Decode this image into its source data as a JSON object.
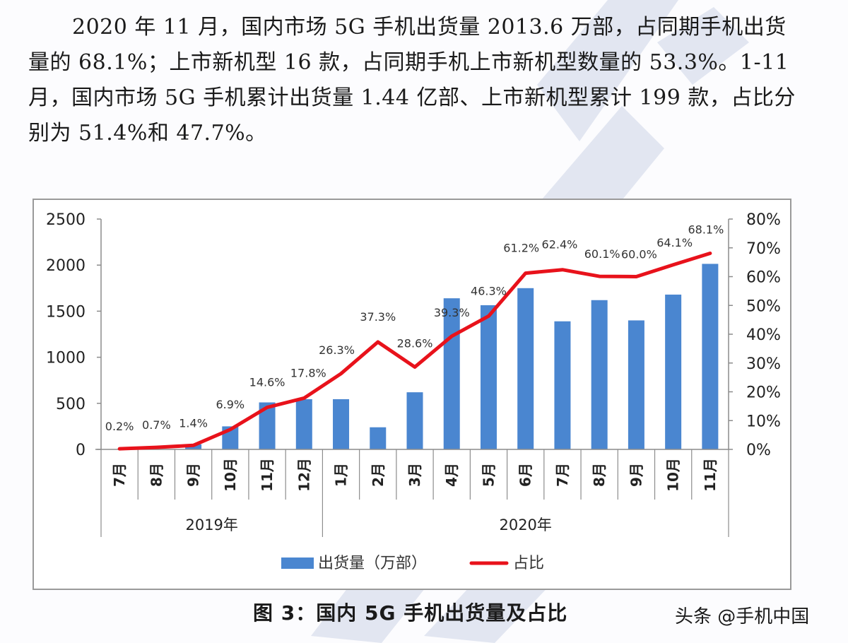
{
  "paragraph": {
    "lines": [
      "2020 年 11 月，国内市场 5G 手机出货量 2013.6 万部，占同期手机出货",
      "量的 68.1%；上市新机型 16 款，占同期手机上市新机型数量的 53.3%。1-11",
      "月，国内市场 5G 手机累计出货量 1.44 亿部、上市新机型累计 199 款，占比分",
      "别为 51.4%和 47.7%。"
    ]
  },
  "caption": "图 3：国内 5G 手机出货量及占比",
  "credit": "头条 @手机中国",
  "colors": {
    "bar": "#4a86d0",
    "line": "#e8121b",
    "axis": "#8c8c8c",
    "text": "#333333"
  },
  "chart_data": {
    "type": "bar+line",
    "title": "国内 5G 手机出货量及占比",
    "categories": [
      "7月",
      "8月",
      "9月",
      "10月",
      "11月",
      "12月",
      "1月",
      "2月",
      "3月",
      "4月",
      "5月",
      "6月",
      "7月",
      "8月",
      "9月",
      "10月",
      "11月"
    ],
    "groups": [
      {
        "label": "2019年",
        "start": 0,
        "end": 5
      },
      {
        "label": "2020年",
        "start": 6,
        "end": 16
      }
    ],
    "series": [
      {
        "name": "出货量（万部）",
        "type": "bar",
        "axis": "left",
        "values": [
          1,
          3,
          55,
          250,
          510,
          545,
          545,
          240,
          620,
          1640,
          1565,
          1750,
          1390,
          1620,
          1400,
          1680,
          2013.6
        ]
      },
      {
        "name": "占比",
        "type": "line",
        "axis": "right",
        "values": [
          0.2,
          0.7,
          1.4,
          6.9,
          14.6,
          17.8,
          26.3,
          37.3,
          28.6,
          39.3,
          46.3,
          61.2,
          62.4,
          60.1,
          60.0,
          64.1,
          68.1
        ],
        "labels": [
          "0.2%",
          "0.7%",
          "1.4%",
          "6.9%",
          "14.6%",
          "17.8%",
          "26.3%",
          "37.3%",
          "28.6%",
          "39.3%",
          "46.3%",
          "61.2%",
          "62.4%",
          "60.1%",
          "60.0%",
          "64.1%",
          "68.1%"
        ]
      }
    ],
    "left_axis": {
      "min": 0,
      "max": 2500,
      "ticks": [
        "0",
        "500",
        "1000",
        "1500",
        "2000",
        "2500"
      ]
    },
    "right_axis": {
      "min": 0,
      "max": 80,
      "ticks": [
        "0%",
        "10%",
        "20%",
        "30%",
        "40%",
        "50%",
        "60%",
        "70%",
        "80%"
      ]
    },
    "legend": {
      "position": "bottom",
      "items": [
        "出货量（万部）",
        "占比"
      ]
    },
    "grid": false
  }
}
